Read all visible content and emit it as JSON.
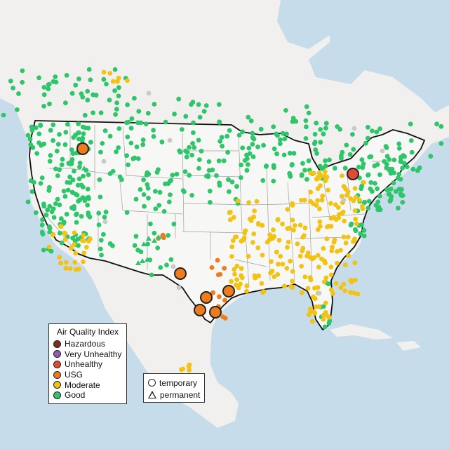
{
  "legend": {
    "title": "Air Quality Index",
    "items": [
      {
        "label": "Hazardous",
        "color": "#7e2b21"
      },
      {
        "label": "Very Unhealthy",
        "color": "#8f5bb6"
      },
      {
        "label": "Unhealthy",
        "color": "#e34a33"
      },
      {
        "label": "USG",
        "color": "#ee7c1c"
      },
      {
        "label": "Moderate",
        "color": "#f2c314"
      },
      {
        "label": "Good",
        "color": "#2fc56b"
      }
    ]
  },
  "type_legend": {
    "temporary": "temporary",
    "permanent": "permanent"
  },
  "colors": {
    "water": "#c6dcea",
    "land": "#f1f0ee",
    "us_land": "#f7f7f6",
    "border": "#111111",
    "state_line": "#a0a0a0",
    "no_data": "#c9c9c9"
  }
}
